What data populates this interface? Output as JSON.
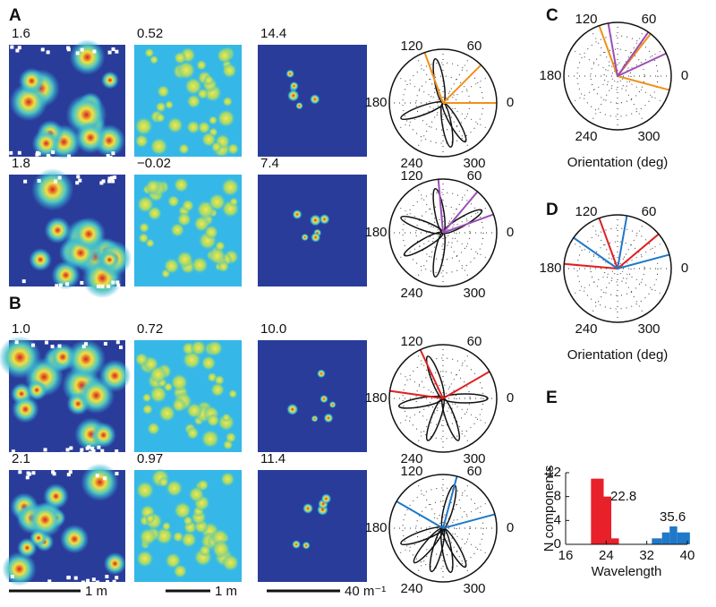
{
  "panel_labels": [
    "A",
    "B",
    "C",
    "D",
    "E"
  ],
  "maps": [
    [
      "1.6",
      "0.52",
      "14.4"
    ],
    [
      "1.8",
      "−0.02",
      "7.4"
    ],
    [
      "1.0",
      "0.72",
      "10.0"
    ],
    [
      "2.1",
      "0.97",
      "11.4"
    ]
  ],
  "polar_labels": [
    "120",
    "60",
    "180",
    "0",
    "240",
    "300"
  ],
  "orientation_label": "Orientation (deg)",
  "scale_bars": [
    "1 m",
    "1 m",
    "40 m⁻¹"
  ],
  "chart_data": {
    "type": "histogram",
    "xlabel": "Wavelength",
    "ylabel": "N components",
    "xlim": [
      16,
      40
    ],
    "xticks": [
      16,
      24,
      32,
      40
    ],
    "ylim": [
      0,
      12
    ],
    "yticks": [
      0,
      4,
      8,
      12
    ],
    "series": [
      {
        "color": "#e8202a",
        "bins": [
          21,
          23.5,
          25,
          26.5
        ],
        "values": [
          11,
          8,
          1
        ]
      },
      {
        "color": "#1f78c8",
        "bins": [
          33,
          35,
          36.5,
          38,
          40.5
        ],
        "values": [
          1,
          2,
          3,
          2
        ]
      }
    ],
    "annotations": [
      "22.8",
      "35.6"
    ]
  }
}
